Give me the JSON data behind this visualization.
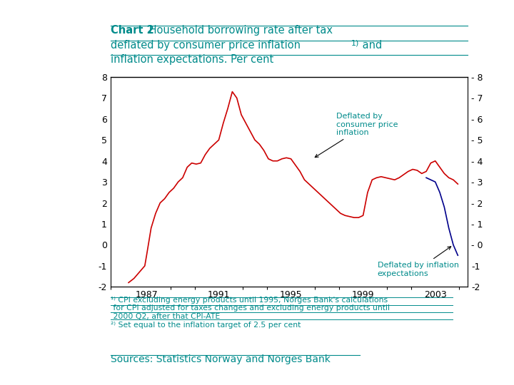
{
  "title_bold": "Chart 2",
  "title_rest": " Household borrowing rate after tax\ndeflated by consumer price inflation",
  "title_super": "1) and",
  "title_end": "inflation expectations. Per cent",
  "xlabel_ticks": [
    1987,
    1991,
    1995,
    1999,
    2003
  ],
  "ylim": [
    -2,
    8
  ],
  "yticks": [
    -2,
    -1,
    0,
    1,
    2,
    3,
    4,
    5,
    6,
    7,
    8
  ],
  "title_color": "#008B8B",
  "annotation_color": "#008B8B",
  "footnote_color": "#008B8B",
  "line1_color": "#cc0000",
  "line2_color": "#00008b",
  "background": "#ffffff",
  "cpi_line_x": [
    1986.0,
    1986.3,
    1986.6,
    1986.9,
    1987.0,
    1987.25,
    1987.5,
    1987.75,
    1988.0,
    1988.25,
    1988.5,
    1988.75,
    1989.0,
    1989.25,
    1989.5,
    1989.75,
    1990.0,
    1990.25,
    1990.5,
    1990.75,
    1991.0,
    1991.25,
    1991.5,
    1991.75,
    1992.0,
    1992.25,
    1992.5,
    1992.75,
    1993.0,
    1993.25,
    1993.5,
    1993.75,
    1994.0,
    1994.25,
    1994.5,
    1994.75,
    1995.0,
    1995.25,
    1995.5,
    1995.75,
    1996.0,
    1996.25,
    1996.5,
    1996.75,
    1997.0,
    1997.25,
    1997.5,
    1997.75,
    1998.0,
    1998.25,
    1998.5,
    1998.75,
    1999.0,
    1999.25,
    1999.5,
    1999.75,
    2000.0,
    2000.25,
    2000.5,
    2000.75,
    2001.0,
    2001.25,
    2001.5,
    2001.75,
    2002.0,
    2002.25,
    2002.5,
    2002.75,
    2003.0,
    2003.25,
    2003.5,
    2003.75,
    2004.0,
    2004.25
  ],
  "cpi_line_y": [
    -1.8,
    -1.6,
    -1.3,
    -1.0,
    -0.5,
    0.8,
    1.5,
    2.0,
    2.2,
    2.5,
    2.7,
    3.0,
    3.2,
    3.7,
    3.9,
    3.85,
    3.9,
    4.3,
    4.6,
    4.8,
    5.0,
    5.8,
    6.5,
    7.3,
    7.0,
    6.2,
    5.8,
    5.4,
    5.0,
    4.8,
    4.5,
    4.1,
    4.0,
    4.0,
    4.1,
    4.15,
    4.1,
    3.8,
    3.5,
    3.1,
    2.9,
    2.7,
    2.5,
    2.3,
    2.1,
    1.9,
    1.7,
    1.5,
    1.4,
    1.35,
    1.3,
    1.3,
    1.4,
    2.5,
    3.1,
    3.2,
    3.25,
    3.2,
    3.15,
    3.1,
    3.2,
    3.35,
    3.5,
    3.6,
    3.55,
    3.4,
    3.5,
    3.9,
    4.0,
    3.7,
    3.4,
    3.2,
    3.1,
    2.9
  ],
  "exp_line_x": [
    2002.5,
    2002.75,
    2003.0,
    2003.1,
    2003.25,
    2003.5,
    2003.75,
    2004.0,
    2004.25
  ],
  "exp_line_y": [
    3.2,
    3.1,
    3.0,
    2.8,
    2.5,
    1.8,
    0.8,
    0.0,
    -0.5
  ],
  "footnote1_line1": "1) CPI excluding energy products until 1995, Norges Bank's calculations",
  "footnote1_line2": " for CPI adjusted for taxes changes and excluding energy products until",
  "footnote1_line3": " 2000 Q2, after that CPI-ATE",
  "footnote2": "2) Set equal to the inflation target of 2.5 per cent",
  "sources": "Sources: Statistics Norway and Norges Bank"
}
